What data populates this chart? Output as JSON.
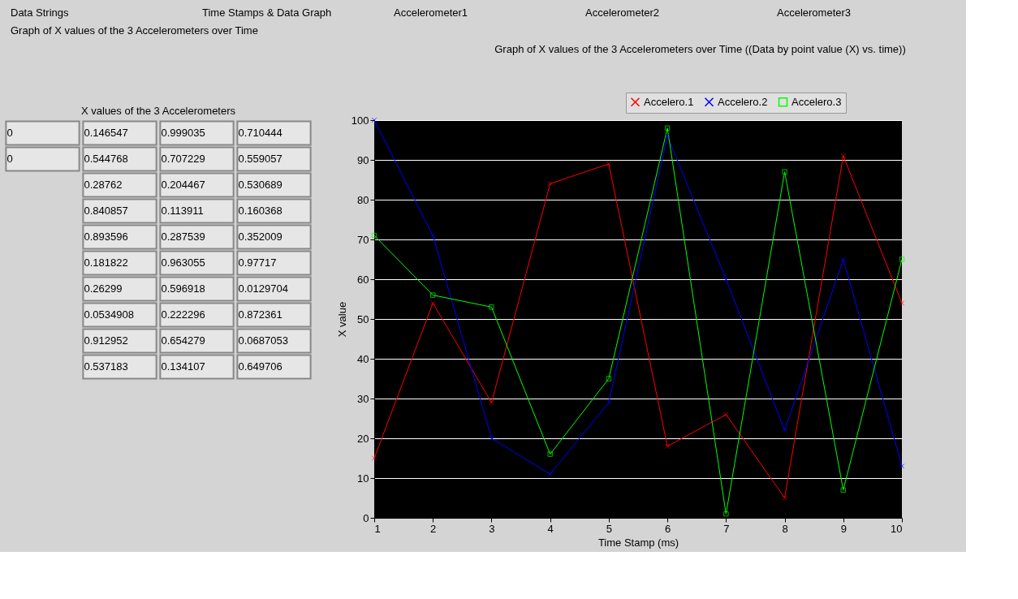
{
  "chart_data": [
    {
      "type": "other",
      "annotations": [
        "Data Strings",
        "Time Stamps & Data Graph",
        "Accelerometer1",
        "Accelerometer2",
        "Accelerometer3",
        "Graph of X values of the 3 Accelerometers over Time"
      ]
    },
    {
      "type": "other",
      "title": "X values of the 3 Accelerometers",
      "annotations": [
        "0",
        "0",
        "0.146547",
        "0.999035",
        "0.710444",
        "0.544768",
        "0.707229",
        "0.559057",
        "0.28762",
        "0.204467",
        "0.530689",
        "0.840857",
        "0.113911",
        "0.160368",
        "0.893596",
        "0.287539",
        "0.352009",
        "0.181822",
        "0.963055",
        "0.97717",
        "0.26299",
        "0.596918",
        "0.0129704",
        "0.0534908",
        "0.222296",
        "0.872361",
        "0.912952",
        "0.654279",
        "0.0687053",
        "0.537183",
        "0.134107",
        "0.649706"
      ]
    },
    {
      "type": "line",
      "title": "Graph of X values of the 3 Accelerometers over Time ((Data by point value (X) vs. time))",
      "xlabel": "Time Stamp (ms)",
      "ylabel": "X value",
      "x": [
        1,
        2,
        3,
        4,
        5,
        6,
        7,
        8,
        9,
        10
      ],
      "xlim": [
        1,
        10
      ],
      "xticks": [
        1,
        2,
        3,
        4,
        5,
        6,
        7,
        8,
        9,
        10
      ],
      "ylim": [
        0,
        100
      ],
      "yticks": [
        0,
        10,
        20,
        30,
        40,
        50,
        60,
        70,
        80,
        90,
        100
      ],
      "grid": "y",
      "legend": "top right",
      "line_style": "solid",
      "series": [
        {
          "name": "Accelero.1",
          "color": "#ff0000",
          "marker": "cross",
          "values": [
            15,
            54,
            29,
            84,
            89,
            18,
            26,
            5,
            91,
            54
          ]
        },
        {
          "name": "Accelero.2",
          "color": "#0000ff",
          "marker": "cross",
          "values": [
            100,
            71,
            20,
            11,
            29,
            96,
            60,
            22,
            65,
            13
          ]
        },
        {
          "name": "Accelero.3",
          "color": "#00ff00",
          "marker": "square",
          "values": [
            71,
            56,
            53,
            16,
            35,
            98,
            1,
            87,
            7,
            65
          ]
        }
      ]
    }
  ]
}
